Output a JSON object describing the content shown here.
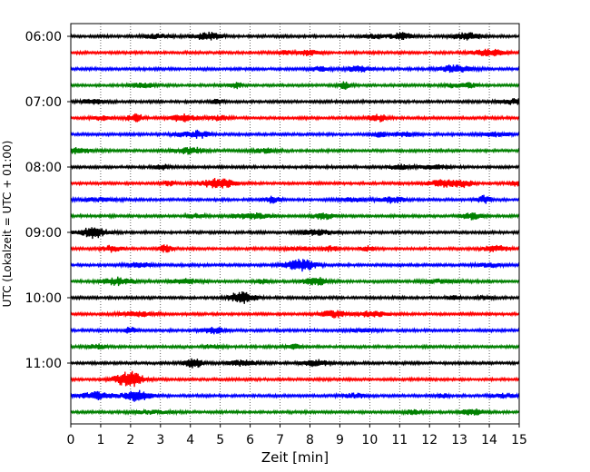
{
  "chart_data": {
    "type": "line",
    "title": "",
    "xlabel": "Zeit  [min]",
    "ylabel": "UTC (Lokalzeit = UTC + 01:00)",
    "xlim": [
      0,
      15
    ],
    "x_ticks": [
      0,
      1,
      2,
      3,
      4,
      5,
      6,
      7,
      8,
      9,
      10,
      11,
      12,
      13,
      14,
      15
    ],
    "y_tick_labels": [
      "06:00",
      "07:00",
      "08:00",
      "09:00",
      "10:00",
      "11:00"
    ],
    "grid": "vertical dotted",
    "trace_interval_minutes": 15,
    "start_time": "06:00",
    "trace_count": 24,
    "trace_colors": [
      "#000000",
      "#ff0000",
      "#0000ff",
      "#008000"
    ]
  }
}
